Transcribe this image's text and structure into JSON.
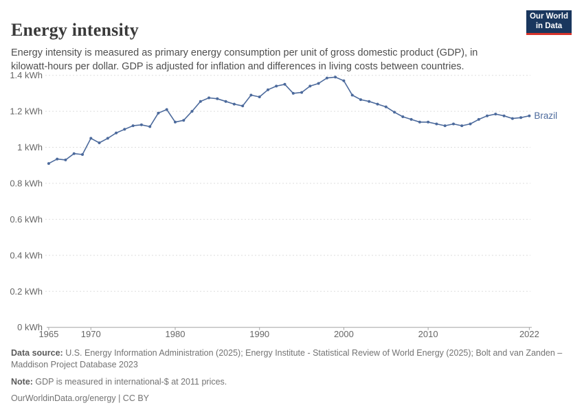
{
  "header": {
    "title": "Energy intensity",
    "subtitle": "Energy intensity is measured as primary energy consumption per unit of gross domestic product (GDP), in kilowatt-hours per dollar. GDP is adjusted for inflation and differences in living costs between countries.",
    "logo": {
      "line1": "Our World",
      "line2": "in Data"
    }
  },
  "chart_data": {
    "type": "line",
    "title": "Energy intensity",
    "unit": "kWh",
    "xlabel": "",
    "ylabel": "",
    "xlim": [
      1965,
      2022
    ],
    "ylim": [
      0,
      1.4
    ],
    "grid": true,
    "legend_position": "end-of-line",
    "xticks": [
      1965,
      1970,
      1980,
      1990,
      2000,
      2010,
      2022
    ],
    "yticks": [
      {
        "value": 0.0,
        "label": "0 kWh"
      },
      {
        "value": 0.2,
        "label": "0.2 kWh"
      },
      {
        "value": 0.4,
        "label": "0.4 kWh"
      },
      {
        "value": 0.6,
        "label": "0.6 kWh"
      },
      {
        "value": 0.8,
        "label": "0.8 kWh"
      },
      {
        "value": 1.0,
        "label": "1 kWh"
      },
      {
        "value": 1.2,
        "label": "1.2 kWh"
      },
      {
        "value": 1.4,
        "label": "1.4 kWh"
      }
    ],
    "series": [
      {
        "name": "Brazil",
        "color": "#4C6A9C",
        "x": [
          1965,
          1966,
          1967,
          1968,
          1969,
          1970,
          1971,
          1972,
          1973,
          1974,
          1975,
          1976,
          1977,
          1978,
          1979,
          1980,
          1981,
          1982,
          1983,
          1984,
          1985,
          1986,
          1987,
          1988,
          1989,
          1990,
          1991,
          1992,
          1993,
          1994,
          1995,
          1996,
          1997,
          1998,
          1999,
          2000,
          2001,
          2002,
          2003,
          2004,
          2005,
          2006,
          2007,
          2008,
          2009,
          2010,
          2011,
          2012,
          2013,
          2014,
          2015,
          2016,
          2017,
          2018,
          2019,
          2020,
          2021,
          2022
        ],
        "values": [
          0.91,
          0.935,
          0.93,
          0.965,
          0.96,
          1.05,
          1.025,
          1.05,
          1.08,
          1.1,
          1.12,
          1.125,
          1.115,
          1.19,
          1.21,
          1.14,
          1.15,
          1.2,
          1.255,
          1.275,
          1.27,
          1.255,
          1.24,
          1.23,
          1.29,
          1.28,
          1.32,
          1.34,
          1.35,
          1.3,
          1.305,
          1.34,
          1.355,
          1.385,
          1.39,
          1.37,
          1.29,
          1.265,
          1.255,
          1.24,
          1.225,
          1.195,
          1.17,
          1.155,
          1.14,
          1.14,
          1.13,
          1.12,
          1.13,
          1.12,
          1.13,
          1.155,
          1.175,
          1.185,
          1.175,
          1.16,
          1.165,
          1.175
        ]
      }
    ],
    "end_label": "Brazil"
  },
  "footer": {
    "data_source_label": "Data source:",
    "data_source_text": " U.S. Energy Information Administration (2025); Energy Institute - Statistical Review of World Energy (2025); Bolt and van Zanden – Maddison Project Database 2023",
    "note_label": "Note:",
    "note_text": " GDP is measured in international-$ at 2011 prices.",
    "license": "OurWorldinData.org/energy | CC BY"
  },
  "colors": {
    "line": "#4C6A9C",
    "gridline": "#dddddd",
    "axis": "#a3a3a3",
    "tick_label": "#666666",
    "logo_bg": "#1a375e",
    "logo_accent": "#d7342b"
  }
}
